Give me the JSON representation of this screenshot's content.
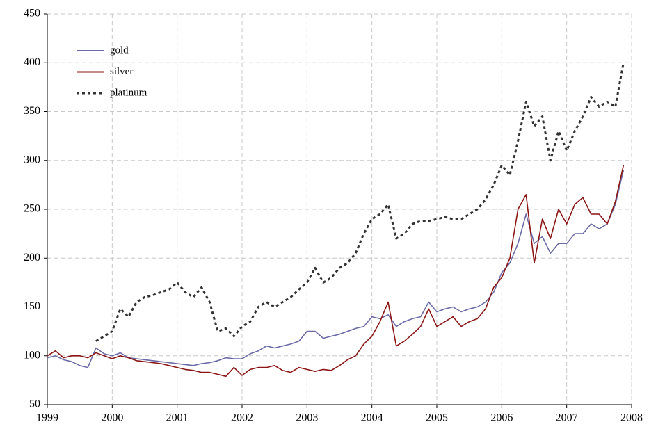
{
  "chart_data": {
    "type": "line",
    "x": [
      1999,
      1999.125,
      1999.25,
      1999.375,
      1999.5,
      1999.625,
      1999.75,
      1999.875,
      2000,
      2000.125,
      2000.25,
      2000.375,
      2000.5,
      2000.625,
      2000.75,
      2000.875,
      2001,
      2001.125,
      2001.25,
      2001.375,
      2001.5,
      2001.625,
      2001.75,
      2001.875,
      2002,
      2002.125,
      2002.25,
      2002.375,
      2002.5,
      2002.625,
      2002.75,
      2002.875,
      2003,
      2003.125,
      2003.25,
      2003.375,
      2003.5,
      2003.625,
      2003.75,
      2003.875,
      2004,
      2004.125,
      2004.25,
      2004.375,
      2004.5,
      2004.625,
      2004.75,
      2004.875,
      2005,
      2005.125,
      2005.25,
      2005.375,
      2005.5,
      2005.625,
      2005.75,
      2005.875,
      2006,
      2006.125,
      2006.25,
      2006.375,
      2006.5,
      2006.625,
      2006.75,
      2006.875,
      2007,
      2007.125,
      2007.25,
      2007.375,
      2007.5,
      2007.625,
      2007.75,
      2007.875
    ],
    "series": [
      {
        "name": "gold",
        "color": "#6a6aa6",
        "style": "solid",
        "values": [
          98,
          100,
          96,
          94,
          90,
          88,
          108,
          102,
          100,
          103,
          98,
          97,
          96,
          95,
          94,
          93,
          92,
          91,
          90,
          92,
          93,
          95,
          98,
          97,
          97,
          102,
          105,
          110,
          108,
          110,
          112,
          115,
          125,
          125,
          118,
          120,
          122,
          125,
          128,
          130,
          140,
          138,
          142,
          130,
          135,
          138,
          140,
          155,
          145,
          148,
          150,
          145,
          148,
          150,
          155,
          165,
          185,
          195,
          215,
          245,
          215,
          222,
          205,
          215,
          215,
          225,
          225,
          235,
          230,
          235,
          255,
          290
        ]
      },
      {
        "name": "silver",
        "color": "#8b1515",
        "style": "solid",
        "values": [
          100,
          105,
          98,
          100,
          100,
          98,
          103,
          100,
          97,
          100,
          98,
          95,
          94,
          93,
          92,
          90,
          88,
          86,
          85,
          83,
          83,
          81,
          79,
          88,
          80,
          86,
          88,
          88,
          90,
          85,
          83,
          88,
          86,
          84,
          86,
          85,
          90,
          96,
          100,
          112,
          120,
          135,
          155,
          110,
          115,
          122,
          130,
          148,
          130,
          135,
          140,
          130,
          135,
          138,
          148,
          170,
          180,
          200,
          250,
          265,
          195,
          240,
          220,
          250,
          235,
          255,
          262,
          245,
          245,
          235,
          258,
          295
        ]
      },
      {
        "name": "platinum",
        "color": "#333333",
        "style": "dotted",
        "values": [
          null,
          null,
          null,
          null,
          null,
          null,
          115,
          120,
          125,
          148,
          140,
          155,
          160,
          162,
          165,
          168,
          175,
          165,
          160,
          170,
          155,
          125,
          128,
          120,
          130,
          135,
          150,
          155,
          150,
          155,
          160,
          168,
          175,
          190,
          175,
          180,
          190,
          195,
          205,
          225,
          240,
          245,
          255,
          220,
          225,
          235,
          238,
          238,
          240,
          242,
          240,
          240,
          245,
          250,
          260,
          275,
          295,
          285,
          320,
          360,
          335,
          345,
          300,
          330,
          310,
          330,
          345,
          365,
          355,
          360,
          355,
          400
        ]
      }
    ],
    "xlim": [
      1999,
      2008
    ],
    "xticks": [
      1999,
      2000,
      2001,
      2002,
      2003,
      2004,
      2005,
      2006,
      2007,
      2008
    ],
    "ylim": [
      50,
      450
    ],
    "yticks": [
      50,
      100,
      150,
      200,
      250,
      300,
      350,
      400,
      450
    ],
    "grid": true,
    "legend": "upper left"
  }
}
